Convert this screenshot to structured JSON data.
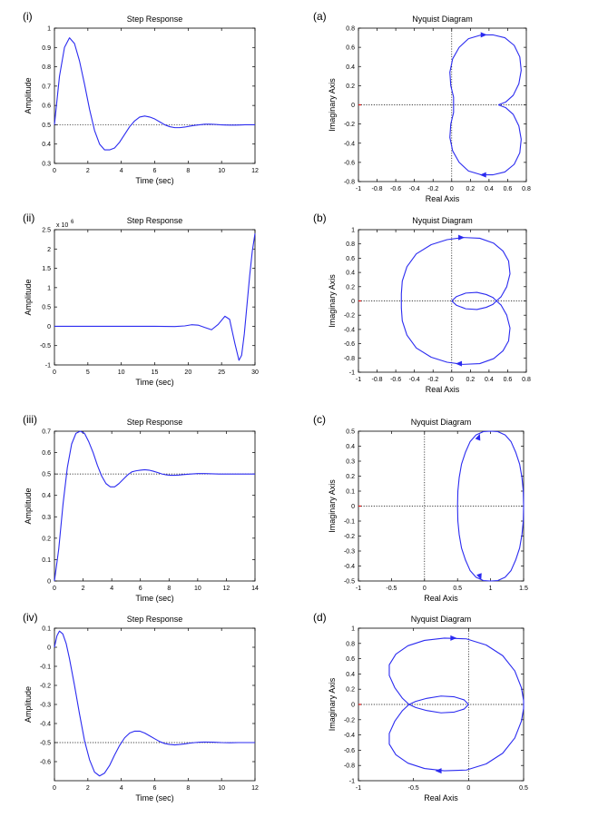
{
  "panels": [
    {
      "panel_label": "(i)",
      "type": "line",
      "title": "Step Response",
      "xlabel": "Time (sec)",
      "ylabel": "Amplitude",
      "xlim": [
        0,
        12
      ],
      "ylim": [
        0.3,
        1
      ],
      "xticks": [
        0,
        2,
        4,
        6,
        8,
        10,
        12
      ],
      "yticks": [
        0.3,
        0.4,
        0.5,
        0.6,
        0.7,
        0.8,
        0.9,
        1
      ],
      "reference_lines": [
        {
          "orientation": "horizontal",
          "value": 0.5
        }
      ],
      "series": [
        {
          "x": [
            0,
            0.3,
            0.6,
            0.9,
            1.2,
            1.5,
            1.8,
            2.1,
            2.4,
            2.7,
            3.0,
            3.3,
            3.6,
            3.9,
            4.2,
            4.5,
            4.8,
            5.1,
            5.4,
            5.7,
            6.0,
            6.3,
            6.6,
            6.9,
            7.2,
            7.5,
            7.8,
            8.1,
            8.4,
            8.7,
            9.0,
            9.3,
            9.6,
            9.9,
            10.2,
            10.5,
            10.8,
            11.1,
            11.4,
            11.7,
            12.0
          ],
          "y": [
            0.5,
            0.75,
            0.9,
            0.95,
            0.92,
            0.83,
            0.71,
            0.58,
            0.47,
            0.4,
            0.37,
            0.37,
            0.38,
            0.41,
            0.45,
            0.49,
            0.52,
            0.54,
            0.545,
            0.54,
            0.53,
            0.515,
            0.5,
            0.49,
            0.485,
            0.485,
            0.488,
            0.493,
            0.497,
            0.5,
            0.503,
            0.503,
            0.502,
            0.5,
            0.499,
            0.498,
            0.498,
            0.499,
            0.5,
            0.5,
            0.5
          ]
        }
      ]
    },
    {
      "panel_label": "(a)",
      "type": "line",
      "title": "Nyquist Diagram",
      "xlabel": "Real Axis",
      "ylabel": "Imaginary Axis",
      "xlim": [
        -1,
        0.8
      ],
      "ylim": [
        -0.8,
        0.8
      ],
      "xticks": [
        -1,
        -0.8,
        -0.6,
        -0.4,
        -0.2,
        0,
        0.2,
        0.4,
        0.6,
        0.8
      ],
      "yticks": [
        -0.8,
        -0.6,
        -0.4,
        -0.2,
        0,
        0.2,
        0.4,
        0.6,
        0.8
      ],
      "reference_lines": [
        {
          "orientation": "horizontal",
          "value": 0
        },
        {
          "orientation": "vertical",
          "value": 0
        }
      ],
      "series": [
        {
          "x": [
            0.5,
            0.58,
            0.66,
            0.72,
            0.745,
            0.73,
            0.67,
            0.57,
            0.44,
            0.32,
            0.18,
            0.08,
            0.01,
            -0.02,
            -0.01,
            0.02,
            0.02,
            -0.01,
            -0.02,
            0.01,
            0.08,
            0.18,
            0.32,
            0.44,
            0.57,
            0.67,
            0.73,
            0.745,
            0.72,
            0.66,
            0.58,
            0.5
          ],
          "y": [
            0,
            0.03,
            0.1,
            0.22,
            0.36,
            0.5,
            0.62,
            0.7,
            0.73,
            0.73,
            0.69,
            0.6,
            0.48,
            0.34,
            0.2,
            0.08,
            -0.08,
            -0.2,
            -0.34,
            -0.48,
            -0.6,
            -0.69,
            -0.73,
            -0.73,
            -0.7,
            -0.62,
            -0.5,
            -0.36,
            -0.22,
            -0.1,
            -0.03,
            0
          ]
        }
      ],
      "arrows": [
        {
          "x": 0.34,
          "y": 0.73,
          "direction": "right"
        },
        {
          "x": 0.34,
          "y": -0.73,
          "direction": "left"
        }
      ],
      "critical_point": {
        "x": -1,
        "y": 0
      }
    },
    {
      "panel_label": "(ii)",
      "type": "line",
      "title": "Step Response",
      "xlabel": "Time (sec)",
      "ylabel": "Amplitude",
      "exponent_label": "x 10",
      "exponent_power": "6",
      "xlim": [
        0,
        30
      ],
      "ylim": [
        -1,
        2.5
      ],
      "xticks": [
        0,
        5,
        10,
        15,
        20,
        25,
        30
      ],
      "yticks": [
        -1,
        -0.5,
        0,
        0.5,
        1,
        1.5,
        2,
        2.5
      ],
      "reference_lines": [],
      "series": [
        {
          "x": [
            0,
            5,
            10,
            15,
            18,
            19.5,
            20.5,
            21.5,
            22.5,
            23.5,
            24.5,
            25.5,
            26.2,
            27,
            27.6,
            28,
            28.4,
            28.8,
            29.2,
            29.6,
            30
          ],
          "y": [
            0,
            0,
            0,
            0,
            -0.005,
            0.01,
            0.04,
            0.03,
            -0.03,
            -0.09,
            0.05,
            0.26,
            0.18,
            -0.45,
            -0.88,
            -0.75,
            -0.2,
            0.55,
            1.3,
            1.95,
            2.4
          ]
        }
      ]
    },
    {
      "panel_label": "(b)",
      "type": "line",
      "title": "Nyquist Diagram",
      "xlabel": "Real Axis",
      "ylabel": "Imaginary Axis",
      "xlim": [
        -1,
        0.8
      ],
      "ylim": [
        -1,
        1
      ],
      "xticks": [
        -1,
        -0.8,
        -0.6,
        -0.4,
        -0.2,
        0,
        0.2,
        0.4,
        0.6,
        0.8
      ],
      "yticks": [
        -1,
        -0.8,
        -0.6,
        -0.4,
        -0.2,
        0,
        0.2,
        0.4,
        0.6,
        0.8,
        1
      ],
      "reference_lines": [
        {
          "orientation": "horizontal",
          "value": 0
        },
        {
          "orientation": "vertical",
          "value": 0
        }
      ],
      "series": [
        {
          "x": [
            0,
            0.05,
            0.15,
            0.27,
            0.37,
            0.44,
            0.48,
            0.53,
            0.59,
            0.625,
            0.61,
            0.55,
            0.45,
            0.3,
            0.12,
            -0.05,
            -0.22,
            -0.38,
            -0.48,
            -0.53,
            -0.54,
            -0.54,
            -0.53,
            -0.48,
            -0.38,
            -0.22,
            -0.05,
            0.12,
            0.3,
            0.45,
            0.55,
            0.61,
            0.625,
            0.59,
            0.53,
            0.48,
            0.44,
            0.37,
            0.27,
            0.15,
            0.05,
            0
          ],
          "y": [
            0,
            0.06,
            0.11,
            0.12,
            0.09,
            0.05,
            0,
            0.06,
            0.2,
            0.38,
            0.56,
            0.7,
            0.81,
            0.88,
            0.89,
            0.86,
            0.79,
            0.66,
            0.48,
            0.28,
            0.1,
            -0.1,
            -0.28,
            -0.48,
            -0.66,
            -0.79,
            -0.86,
            -0.89,
            -0.88,
            -0.81,
            -0.7,
            -0.56,
            -0.38,
            -0.2,
            -0.06,
            0,
            -0.05,
            -0.09,
            -0.12,
            -0.11,
            -0.06,
            0
          ]
        }
      ],
      "arrows": [
        {
          "x": 0.1,
          "y": 0.89,
          "direction": "right"
        },
        {
          "x": 0.08,
          "y": -0.88,
          "direction": "left"
        }
      ],
      "critical_point": {
        "x": -1,
        "y": 0
      }
    },
    {
      "panel_label": "(iii)",
      "type": "line",
      "title": "Step Response",
      "xlabel": "Time (sec)",
      "ylabel": "Amplitude",
      "xlim": [
        0,
        14
      ],
      "ylim": [
        0,
        0.7
      ],
      "xticks": [
        0,
        2,
        4,
        6,
        8,
        10,
        12,
        14
      ],
      "yticks": [
        0,
        0.1,
        0.2,
        0.3,
        0.4,
        0.5,
        0.6,
        0.7
      ],
      "reference_lines": [
        {
          "orientation": "horizontal",
          "value": 0.5
        }
      ],
      "series": [
        {
          "x": [
            0,
            0.3,
            0.6,
            0.9,
            1.2,
            1.5,
            1.8,
            2.1,
            2.4,
            2.7,
            3.0,
            3.3,
            3.6,
            3.9,
            4.2,
            4.5,
            4.8,
            5.1,
            5.4,
            5.7,
            6.0,
            6.3,
            6.6,
            6.9,
            7.2,
            7.5,
            7.8,
            8.1,
            8.4,
            8.7,
            9.0,
            9.5,
            10,
            10.5,
            11,
            11.5,
            12,
            12.5,
            13,
            13.5,
            14
          ],
          "y": [
            0,
            0.15,
            0.36,
            0.53,
            0.64,
            0.69,
            0.7,
            0.69,
            0.65,
            0.6,
            0.54,
            0.49,
            0.455,
            0.44,
            0.44,
            0.455,
            0.475,
            0.495,
            0.51,
            0.515,
            0.518,
            0.52,
            0.518,
            0.513,
            0.507,
            0.5,
            0.496,
            0.494,
            0.494,
            0.495,
            0.497,
            0.5,
            0.502,
            0.502,
            0.501,
            0.5,
            0.5,
            0.5,
            0.5,
            0.5,
            0.5
          ]
        }
      ]
    },
    {
      "panel_label": "(c)",
      "type": "line",
      "title": "Nyquist Diagram",
      "xlabel": "Real Axis",
      "ylabel": "Imaginary Axis",
      "xlim": [
        -1,
        1.5
      ],
      "ylim": [
        -0.5,
        0.5
      ],
      "xticks": [
        -1,
        -0.5,
        0,
        0.5,
        1,
        1.5
      ],
      "yticks": [
        -0.5,
        -0.4,
        -0.3,
        -0.2,
        -0.1,
        0,
        0.1,
        0.2,
        0.3,
        0.4,
        0.5
      ],
      "reference_lines": [
        {
          "orientation": "horizontal",
          "value": 0
        },
        {
          "orientation": "vertical",
          "value": 0
        }
      ],
      "series": [
        {
          "x": [
            1.5,
            1.495,
            1.475,
            1.44,
            1.38,
            1.31,
            1.22,
            1.11,
            1.0,
            0.89,
            0.78,
            0.69,
            0.62,
            0.56,
            0.525,
            0.505,
            0.5,
            0.505,
            0.525,
            0.56,
            0.62,
            0.69,
            0.78,
            0.89,
            1.0,
            1.11,
            1.22,
            1.31,
            1.38,
            1.44,
            1.475,
            1.495,
            1.5
          ],
          "y": [
            0,
            0.1,
            0.19,
            0.28,
            0.36,
            0.43,
            0.475,
            0.497,
            0.5,
            0.497,
            0.475,
            0.43,
            0.36,
            0.28,
            0.19,
            0.1,
            0,
            -0.1,
            -0.19,
            -0.28,
            -0.36,
            -0.43,
            -0.475,
            -0.497,
            -0.5,
            -0.497,
            -0.475,
            -0.43,
            -0.36,
            -0.28,
            -0.19,
            -0.1,
            0
          ]
        }
      ],
      "arrows": [
        {
          "x": 0.82,
          "y": 0.46,
          "direction": "up-right"
        },
        {
          "x": 0.84,
          "y": -0.47,
          "direction": "down-right"
        }
      ],
      "critical_point": {
        "x": -1,
        "y": 0
      }
    },
    {
      "panel_label": "(iv)",
      "type": "line",
      "title": "Step Response",
      "xlabel": "Time (sec)",
      "ylabel": "Amplitude",
      "xlim": [
        0,
        12
      ],
      "ylim": [
        -0.7,
        0.1
      ],
      "xticks": [
        0,
        2,
        4,
        6,
        8,
        10,
        12
      ],
      "yticks": [
        -0.6,
        -0.5,
        -0.4,
        -0.3,
        -0.2,
        -0.1,
        0,
        0.1
      ],
      "reference_lines": [
        {
          "orientation": "horizontal",
          "value": -0.5
        }
      ],
      "series": [
        {
          "x": [
            0,
            0.15,
            0.3,
            0.5,
            0.7,
            0.9,
            1.2,
            1.5,
            1.8,
            2.1,
            2.4,
            2.7,
            3.0,
            3.3,
            3.6,
            3.9,
            4.2,
            4.5,
            4.8,
            5.1,
            5.4,
            5.7,
            6.0,
            6.3,
            6.6,
            6.9,
            7.2,
            7.5,
            7.8,
            8.1,
            8.4,
            8.7,
            9.0,
            9.5,
            10,
            10.5,
            11,
            11.5,
            12
          ],
          "y": [
            0,
            0.06,
            0.085,
            0.07,
            0.02,
            -0.06,
            -0.2,
            -0.35,
            -0.49,
            -0.59,
            -0.655,
            -0.675,
            -0.66,
            -0.62,
            -0.565,
            -0.515,
            -0.475,
            -0.45,
            -0.44,
            -0.44,
            -0.45,
            -0.465,
            -0.48,
            -0.495,
            -0.505,
            -0.51,
            -0.512,
            -0.51,
            -0.507,
            -0.503,
            -0.5,
            -0.498,
            -0.497,
            -0.498,
            -0.5,
            -0.501,
            -0.5,
            -0.5,
            -0.5
          ]
        }
      ]
    },
    {
      "panel_label": "(d)",
      "type": "line",
      "title": "Nyquist Diagram",
      "xlabel": "Real Axis",
      "ylabel": "Imaginary Axis",
      "xlim": [
        -1,
        0.5
      ],
      "ylim": [
        -1,
        1
      ],
      "xticks": [
        -1,
        -0.5,
        0,
        0.5
      ],
      "yticks": [
        -1,
        -0.8,
        -0.6,
        -0.4,
        -0.2,
        0,
        0.2,
        0.4,
        0.6,
        0.8,
        1
      ],
      "reference_lines": [
        {
          "orientation": "horizontal",
          "value": 0
        },
        {
          "orientation": "vertical",
          "value": 0
        }
      ],
      "series": [
        {
          "x": [
            0,
            -0.04,
            -0.13,
            -0.25,
            -0.38,
            -0.48,
            -0.54,
            -0.6,
            -0.67,
            -0.72,
            -0.72,
            -0.66,
            -0.55,
            -0.4,
            -0.22,
            -0.02,
            0.16,
            0.31,
            0.42,
            0.48,
            0.5,
            0.5,
            0.48,
            0.42,
            0.31,
            0.16,
            -0.02,
            -0.22,
            -0.4,
            -0.55,
            -0.66,
            -0.72,
            -0.72,
            -0.67,
            -0.6,
            -0.54,
            -0.48,
            -0.38,
            -0.25,
            -0.13,
            -0.04,
            0
          ],
          "y": [
            0,
            0.06,
            0.1,
            0.11,
            0.08,
            0.04,
            0,
            0.08,
            0.22,
            0.38,
            0.52,
            0.66,
            0.77,
            0.84,
            0.87,
            0.86,
            0.78,
            0.64,
            0.44,
            0.22,
            0.05,
            -0.05,
            -0.22,
            -0.44,
            -0.64,
            -0.78,
            -0.86,
            -0.87,
            -0.84,
            -0.77,
            -0.66,
            -0.52,
            -0.38,
            -0.22,
            -0.08,
            0,
            -0.04,
            -0.08,
            -0.11,
            -0.1,
            -0.06,
            0
          ]
        }
      ],
      "arrows": [
        {
          "x": -0.14,
          "y": 0.87,
          "direction": "right"
        },
        {
          "x": -0.27,
          "y": -0.87,
          "direction": "left"
        }
      ],
      "critical_point": {
        "x": -1,
        "y": 0
      }
    }
  ]
}
